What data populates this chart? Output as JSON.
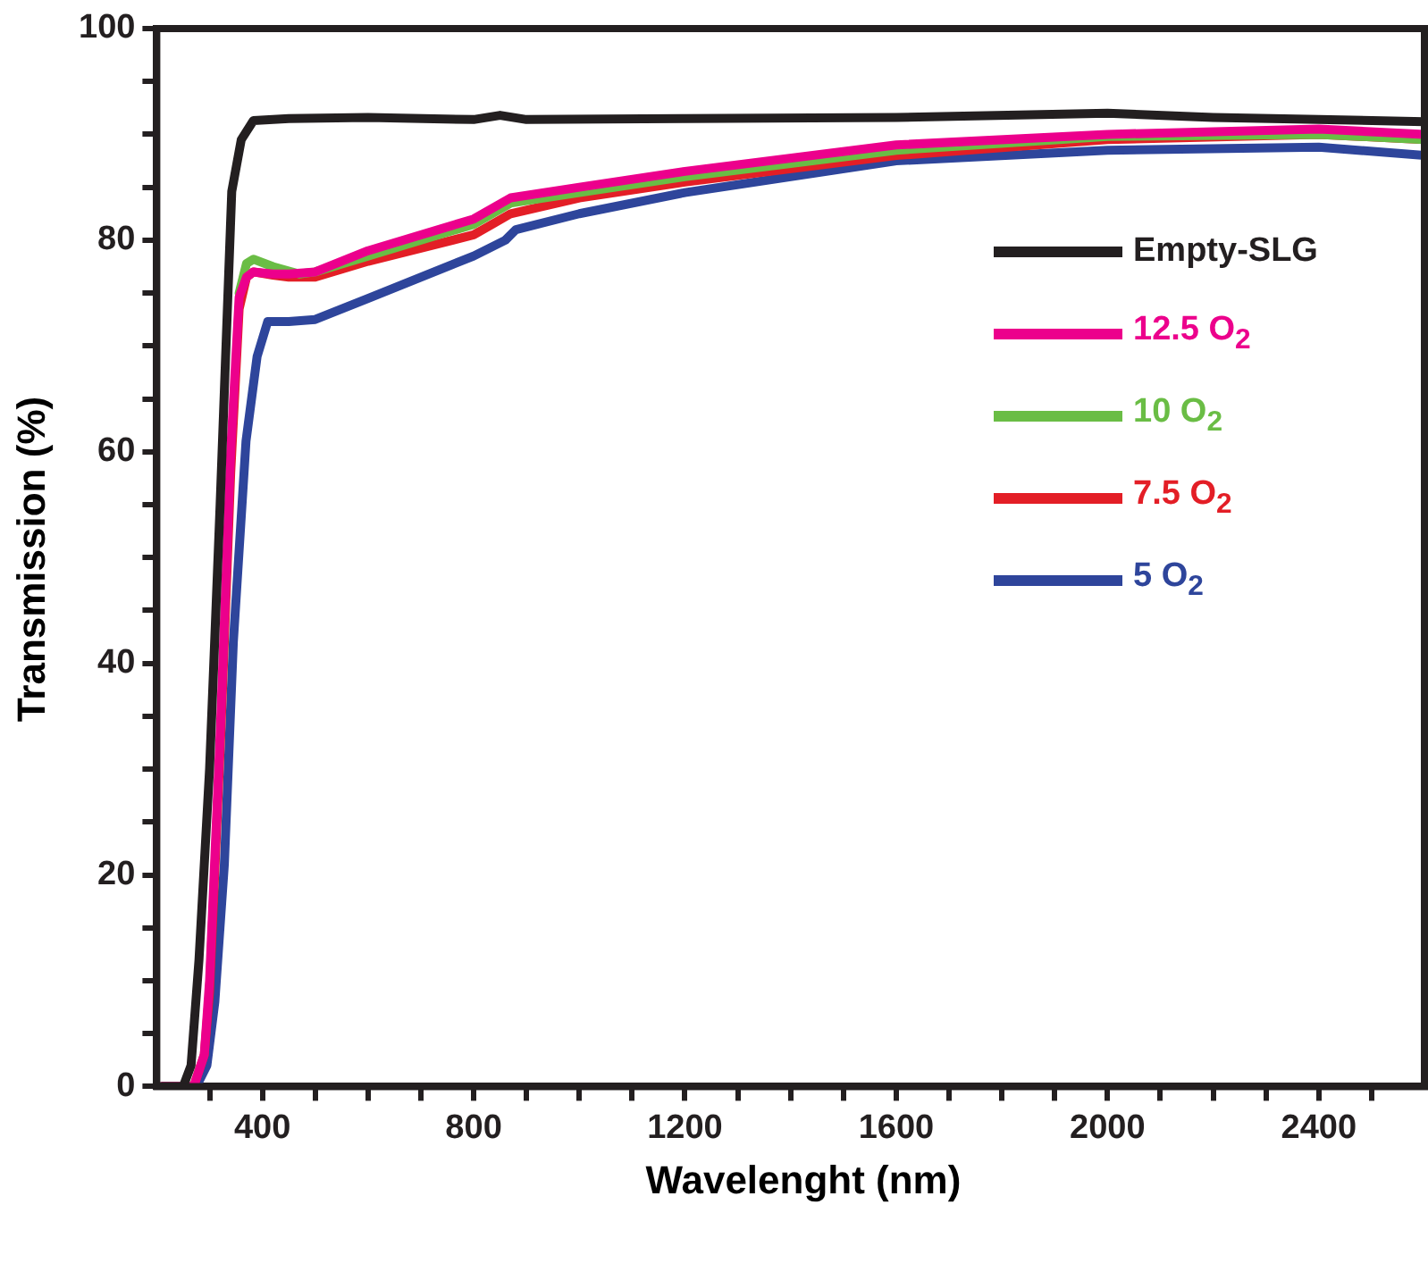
{
  "chart_data": {
    "type": "line",
    "xlabel": "Wavelenght (nm)",
    "ylabel": "Transmission (%)",
    "xlim": [
      200,
      2600
    ],
    "ylim": [
      0,
      100
    ],
    "xticks": [
      {
        "value": 300,
        "label": null
      },
      400,
      {
        "value": 500,
        "label": null
      },
      {
        "value": 600,
        "label": null
      },
      {
        "value": 700,
        "label": null
      },
      800,
      {
        "value": 900,
        "label": null
      },
      {
        "value": 1000,
        "label": null
      },
      {
        "value": 1100,
        "label": null
      },
      1200,
      {
        "value": 1300,
        "label": null
      },
      {
        "value": 1400,
        "label": null
      },
      {
        "value": 1500,
        "label": null
      },
      1600,
      {
        "value": 1700,
        "label": null
      },
      {
        "value": 1800,
        "label": null
      },
      {
        "value": 1900,
        "label": null
      },
      2000,
      {
        "value": 2100,
        "label": null
      },
      {
        "value": 2200,
        "label": null
      },
      {
        "value": 2300,
        "label": null
      },
      2400,
      {
        "value": 2500,
        "label": null
      }
    ],
    "yticks": [
      0,
      {
        "value": 5,
        "label": null
      },
      {
        "value": 10,
        "label": null
      },
      {
        "value": 15,
        "label": null
      },
      20,
      {
        "value": 25,
        "label": null
      },
      {
        "value": 30,
        "label": null
      },
      {
        "value": 35,
        "label": null
      },
      40,
      {
        "value": 45,
        "label": null
      },
      {
        "value": 50,
        "label": null
      },
      {
        "value": 55,
        "label": null
      },
      60,
      {
        "value": 65,
        "label": null
      },
      {
        "value": 70,
        "label": null
      },
      {
        "value": 75,
        "label": null
      },
      80,
      {
        "value": 85,
        "label": null
      },
      {
        "value": 90,
        "label": null
      },
      {
        "value": 95,
        "label": null
      },
      100
    ],
    "grid": false,
    "legend": "right",
    "marker": "none",
    "line_style": "solid",
    "series": [
      {
        "name": "Empty-SLG",
        "color": "#231f20",
        "x": [
          210,
          250,
          265,
          280,
          300,
          320,
          342,
          360,
          383,
          450,
          600,
          800,
          850,
          900,
          1200,
          1600,
          2000,
          2200,
          2400,
          2600
        ],
        "values": [
          0,
          0,
          2,
          12,
          30,
          55,
          84.6,
          89.5,
          91.3,
          91.5,
          91.6,
          91.4,
          91.8,
          91.4,
          91.5,
          91.6,
          92,
          91.6,
          91.4,
          91.2
        ]
      },
      {
        "name": "12.5 O$_{2}$",
        "color": "#ec008c",
        "x": [
          210,
          270,
          290,
          300,
          321,
          340,
          356,
          370,
          383,
          420,
          450,
          500,
          600,
          800,
          870,
          1000,
          1200,
          1600,
          2000,
          2400,
          2600
        ],
        "values": [
          0,
          0,
          3,
          10,
          34.5,
          60,
          74.6,
          76.5,
          77,
          76.8,
          76.8,
          77,
          79,
          82,
          84,
          85,
          86.5,
          89,
          90,
          90.5,
          90
        ]
      },
      {
        "name": "10 O$_{2}$",
        "color": "#6abd45",
        "x": [
          356,
          370,
          383,
          420,
          470,
          500,
          600,
          800,
          870,
          1000,
          1200,
          1600,
          2000,
          2400,
          2600
        ],
        "values": [
          75,
          77.8,
          78.2,
          77.5,
          76.8,
          77,
          78.5,
          81.5,
          83.5,
          84.5,
          86,
          88.5,
          89.8,
          90,
          89.5
        ]
      },
      {
        "name": "7.5 O$_{2}$",
        "color": "#e31e26",
        "x": [
          210,
          270,
          290,
          300,
          321,
          340,
          356,
          370,
          383,
          420,
          450,
          500,
          600,
          800,
          870,
          1000,
          1200,
          1600,
          2000,
          2400,
          2600
        ],
        "values": [
          0,
          0,
          3,
          9,
          33,
          58,
          73.5,
          76.5,
          77,
          76.7,
          76.5,
          76.5,
          78,
          80.5,
          82.5,
          84,
          85.5,
          88,
          89.5,
          90,
          89.5
        ]
      },
      {
        "name": "5 O$_{2}$",
        "color": "#2e459b",
        "x": [
          210,
          275,
          295,
          310,
          328,
          345,
          369,
          390,
          410,
          450,
          500,
          600,
          800,
          860,
          880,
          1000,
          1200,
          1600,
          2000,
          2400,
          2600
        ],
        "values": [
          0,
          0,
          2,
          8,
          21,
          42,
          61,
          69,
          72.3,
          72.3,
          72.5,
          74.5,
          78.5,
          80,
          81,
          82.5,
          84.5,
          87.5,
          88.5,
          88.8,
          88
        ]
      }
    ]
  }
}
